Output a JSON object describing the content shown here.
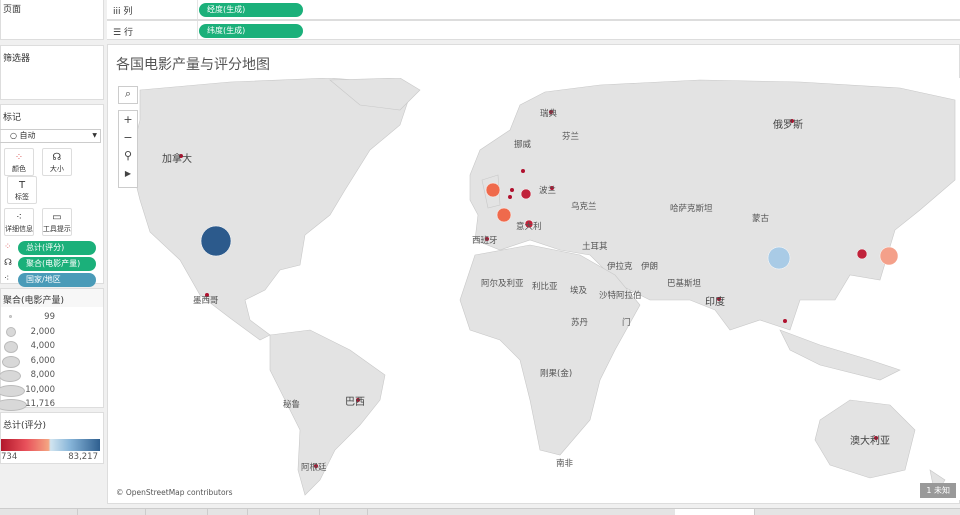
{
  "left_panel": {
    "pages_title": "页面",
    "filters_title": "筛选器",
    "marks": {
      "title": "标记",
      "mark_type": "自动",
      "buttons": [
        {
          "label": "颜色",
          "icon": "color-dots-icon"
        },
        {
          "label": "大小",
          "icon": "size-icon"
        },
        {
          "label": "标签",
          "icon": "label-icon"
        },
        {
          "label": "详细信息",
          "icon": "detail-icon"
        },
        {
          "label": "工具提示",
          "icon": "tooltip-icon"
        }
      ],
      "fields": [
        {
          "label": "总计(评分)",
          "icon": "color-dots-icon",
          "color": "#1bb07a"
        },
        {
          "label": "聚合(电影产量)",
          "icon": "size-icon",
          "color": "#1bb07a"
        },
        {
          "label": "国家/地区",
          "icon": "detail-icon",
          "color": "#4a9bb8"
        }
      ]
    },
    "size_legend": {
      "title": "聚合(电影产量)",
      "values": [
        "99",
        "2,000",
        "4,000",
        "6,000",
        "8,000",
        "10,000",
        "11,716"
      ]
    },
    "color_legend": {
      "title": "总计(评分)",
      "min": "734",
      "max": "83,217",
      "colors": [
        "#b2182b",
        "#f4a582",
        "#d1e5f0",
        "#2f5f8f"
      ]
    }
  },
  "shelves": {
    "columns_label": "列",
    "columns_pill": "经度(生成)",
    "rows_label": "行",
    "rows_pill": "纬度(生成)"
  },
  "view": {
    "title": "各国电影产量与评分地图",
    "attribution": "© OpenStreetMap contributors",
    "unknown_badge": "1 未知",
    "country_labels": [
      "加拿大",
      "墨西哥",
      "巴西",
      "秘鲁",
      "阿根廷",
      "南非",
      "阿尔及利亚",
      "利比亚",
      "埃及",
      "苏丹",
      "沙特阿拉伯",
      "伊拉克",
      "伊朗",
      "土耳其",
      "巴基斯坦",
      "印度",
      "哈萨克斯坦",
      "蒙古",
      "俄罗斯",
      "澳大利亚",
      "西班牙",
      "意大利",
      "波兰",
      "乌克兰",
      "挪威",
      "芬兰",
      "瑞典",
      "刚果(金)",
      "门"
    ],
    "markers": [
      {
        "country": "美国",
        "color": "#2c5a8c"
      },
      {
        "country": "中国",
        "color": "#a9cbe6"
      },
      {
        "country": "日本",
        "color": "#f4a08a"
      },
      {
        "country": "英国",
        "color": "#ef6a4c"
      },
      {
        "country": "法国",
        "color": "#ef6a4c"
      },
      {
        "country": "德国",
        "color": "#c0223a"
      },
      {
        "country": "意大利",
        "color": "#c0223a"
      },
      {
        "country": "韩国",
        "color": "#c0223a"
      }
    ]
  }
}
